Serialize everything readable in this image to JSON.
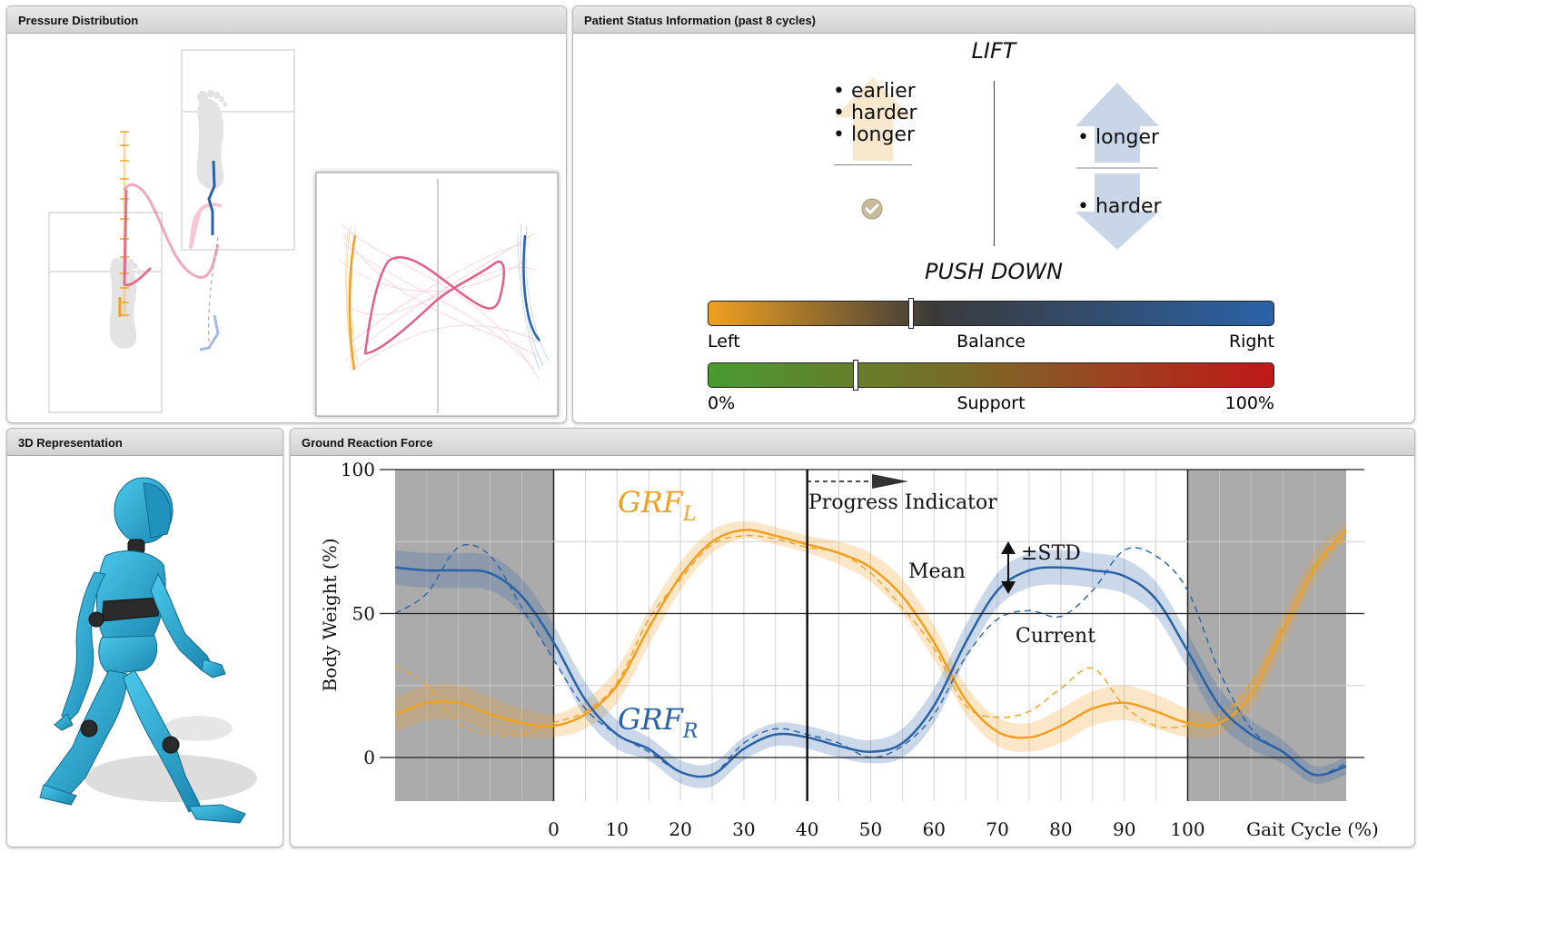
{
  "panels": {
    "pressure": {
      "title": "Pressure Distribution"
    },
    "status": {
      "title": "Patient Status Information (past 8 cycles)"
    },
    "rep3d": {
      "title": "3D Representation"
    },
    "grf": {
      "title": "Ground Reaction Force"
    }
  },
  "status": {
    "lift_label": "LIFT",
    "push_label": "PUSH DOWN",
    "left_lift_items": [
      "• earlier",
      "• harder",
      "• longer"
    ],
    "right_lift_item": "• longer",
    "right_push_item": "• harder",
    "check_icon": "check-circle-icon",
    "balance": {
      "left": "Left",
      "center": "Balance",
      "right": "Right",
      "value_fraction": 0.36,
      "colors": [
        "#f0a020",
        "#3a3a3a",
        "#2a62a8"
      ]
    },
    "support": {
      "left": "0%",
      "center": "Support",
      "right": "100%",
      "value_fraction": 0.26,
      "colors": [
        "#4a9a30",
        "#7a6a28",
        "#c01818"
      ]
    }
  },
  "colors": {
    "left": "#f0a020",
    "right": "#2a62a8",
    "cop": "#e0608a",
    "figure": "#2aa6d0"
  },
  "chart_data": {
    "type": "line",
    "ylabel": "Body Weight (%)",
    "xlabel": "Gait Cycle (%)",
    "xlim": [
      -25,
      125
    ],
    "ylim": [
      -15,
      100
    ],
    "x_ticks": [
      0,
      10,
      20,
      30,
      40,
      50,
      60,
      70,
      80,
      90,
      100
    ],
    "y_ticks": [
      0,
      50,
      100
    ],
    "progress_x": 40,
    "shaded_ranges": [
      [
        -25,
        0
      ],
      [
        100,
        125
      ]
    ],
    "annotations": {
      "progress": "Progress Indicator",
      "mean": "Mean",
      "std": "±STD",
      "current": "Current",
      "grf_l": "GRF",
      "grf_l_sub": "L",
      "grf_r": "GRF",
      "grf_r_sub": "R"
    },
    "x": [
      -25,
      -20,
      -15,
      -10,
      -5,
      0,
      5,
      10,
      15,
      20,
      25,
      30,
      35,
      40,
      45,
      50,
      55,
      60,
      65,
      70,
      75,
      80,
      85,
      90,
      95,
      100,
      105,
      110,
      115,
      120,
      125
    ],
    "series": [
      {
        "name": "GRF_L",
        "role": "mean",
        "values": [
          15,
          19,
          19,
          15,
          12,
          11,
          15,
          25,
          45,
          63,
          75,
          79,
          77,
          74,
          71,
          66,
          56,
          40,
          20,
          9,
          7,
          11,
          17,
          19,
          16,
          12,
          12,
          22,
          44,
          66,
          79
        ]
      },
      {
        "name": "GRF_L",
        "role": "std",
        "values": [
          6,
          6,
          6,
          6,
          5,
          4,
          5,
          6,
          6,
          5,
          4,
          3,
          3,
          3,
          4,
          5,
          6,
          6,
          5,
          5,
          5,
          6,
          6,
          6,
          6,
          5,
          4,
          5,
          6,
          5,
          3
        ]
      },
      {
        "name": "GRF_L",
        "role": "current",
        "values": [
          32,
          25,
          12,
          8,
          8,
          12,
          16,
          26,
          48,
          62,
          74,
          77,
          76,
          73,
          71,
          64,
          52,
          38,
          18,
          14,
          16,
          24,
          31,
          18,
          11,
          11,
          14,
          26,
          45,
          65,
          77
        ]
      },
      {
        "name": "GRF_R",
        "role": "mean",
        "values": [
          66,
          65,
          65,
          64,
          56,
          40,
          20,
          8,
          3,
          -5,
          -6,
          3,
          8,
          7,
          4,
          2,
          5,
          18,
          40,
          58,
          65,
          66,
          65,
          63,
          55,
          37,
          18,
          8,
          2,
          -6,
          -3
        ]
      },
      {
        "name": "GRF_R",
        "role": "std",
        "values": [
          6,
          6,
          6,
          6,
          6,
          6,
          6,
          5,
          4,
          4,
          4,
          4,
          4,
          4,
          4,
          4,
          5,
          6,
          6,
          6,
          6,
          6,
          6,
          6,
          6,
          6,
          6,
          5,
          4,
          3,
          3
        ]
      },
      {
        "name": "GRF_R",
        "role": "current",
        "values": [
          50,
          57,
          73,
          70,
          52,
          34,
          17,
          8,
          2,
          -5,
          -6,
          5,
          10,
          8,
          5,
          0,
          4,
          15,
          35,
          48,
          51,
          49,
          58,
          72,
          70,
          58,
          30,
          10,
          2,
          -6,
          -2
        ]
      }
    ]
  }
}
